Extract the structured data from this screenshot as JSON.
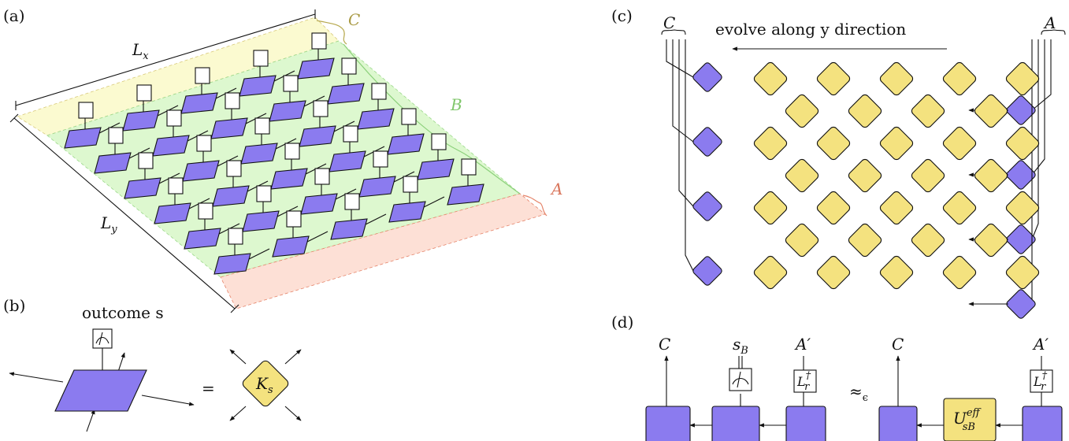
{
  "panels": {
    "a": {
      "tag": "(a)",
      "region_c": "C",
      "region_b": "B",
      "region_a": "A",
      "lx": "L",
      "lx_sub": "x",
      "ly": "L",
      "ly_sub": "y",
      "colors": {
        "c": "#fbfad0",
        "b": "#ddf8cf",
        "a": "#fde0d6"
      }
    },
    "b": {
      "tag": "(b)",
      "outcome": "outcome s",
      "equals": "=",
      "k": "K",
      "k_sub": "s"
    },
    "c": {
      "tag": "(c)",
      "left": "C",
      "right": "A",
      "title": "evolve along y direction"
    },
    "d": {
      "tag": "(d)",
      "c1": "C",
      "sb": "s",
      "sb_sub": "B",
      "a1": "A′",
      "lr": "L",
      "lr_sub": "r",
      "lr_sup": "†",
      "approx": "≈",
      "approx_sub": "ϵ",
      "c2": "C",
      "a2": "A′",
      "u": "U",
      "u_sup": "eff",
      "u_sub": "sB"
    }
  },
  "colors": {
    "purple": "#8b7bef",
    "yellow": "#f4e27f"
  }
}
